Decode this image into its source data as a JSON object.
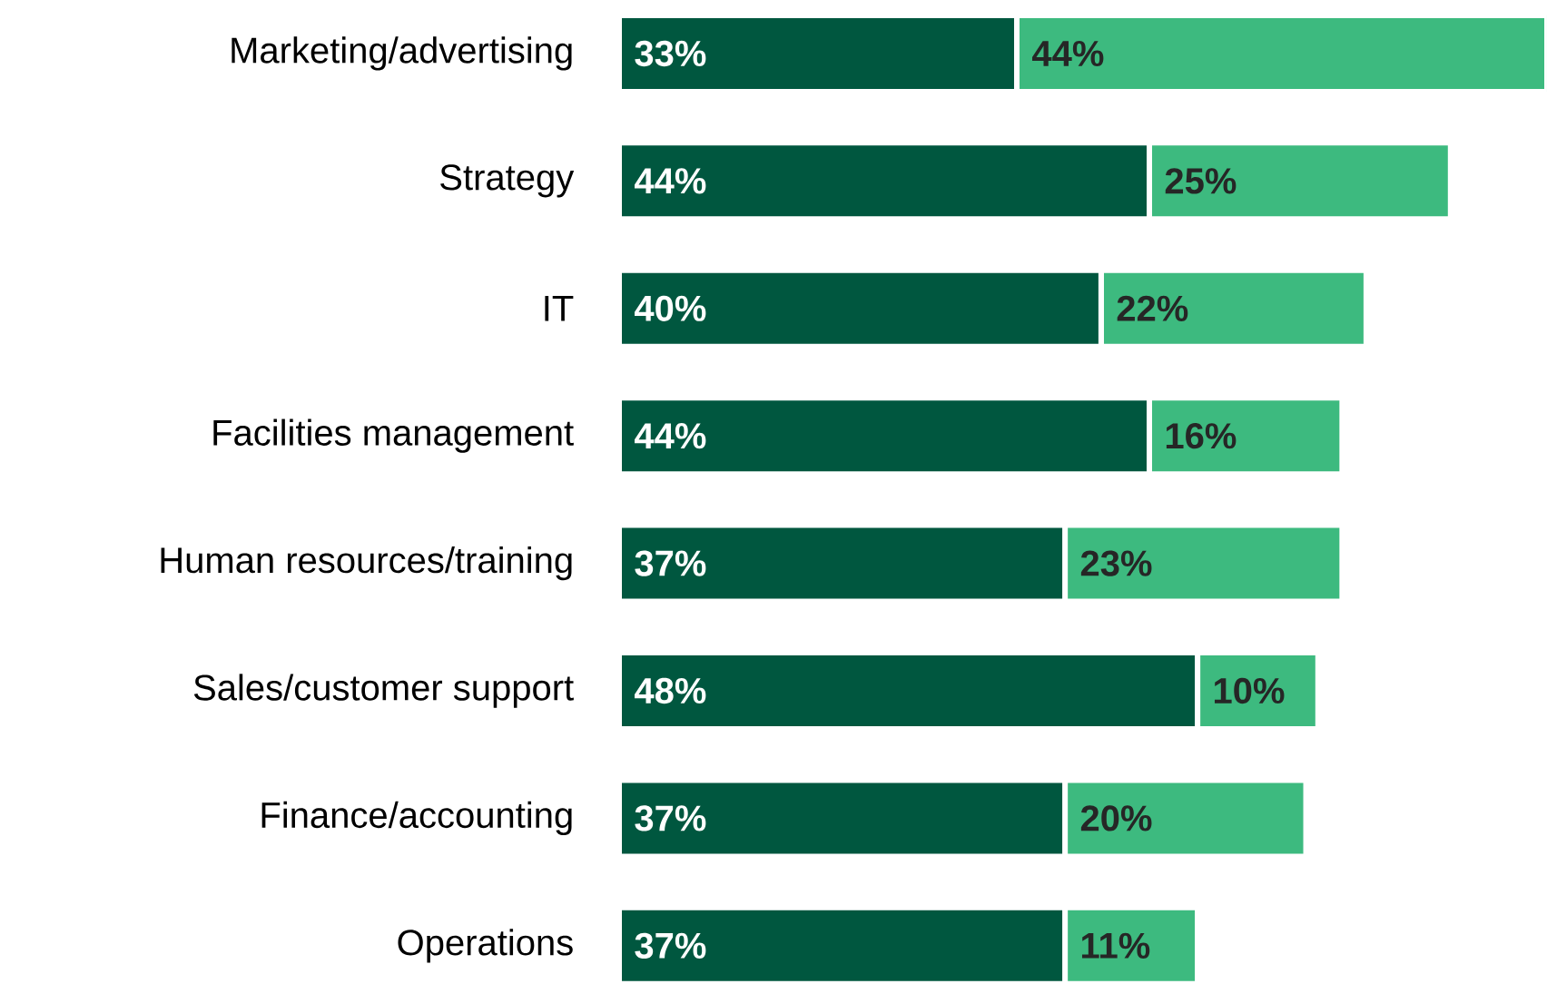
{
  "chart_data": {
    "type": "bar",
    "orientation": "horizontal",
    "stacked": true,
    "categories": [
      "Marketing/advertising",
      "Strategy",
      "IT",
      "Facilities management",
      "Human resources/training",
      "Sales/customer support",
      "Finance/accounting",
      "Operations"
    ],
    "series": [
      {
        "color": "#00573f",
        "values": [
          33,
          44,
          40,
          44,
          37,
          48,
          37,
          37
        ],
        "value_labels": [
          "33%",
          "44%",
          "40%",
          "44%",
          "37%",
          "48%",
          "37%",
          "37%"
        ]
      },
      {
        "color": "#3dba7f",
        "values": [
          44,
          25,
          22,
          16,
          23,
          10,
          20,
          11
        ],
        "value_labels": [
          "44%",
          "25%",
          "22%",
          "16%",
          "23%",
          "10%",
          "20%",
          "11%"
        ]
      }
    ]
  }
}
